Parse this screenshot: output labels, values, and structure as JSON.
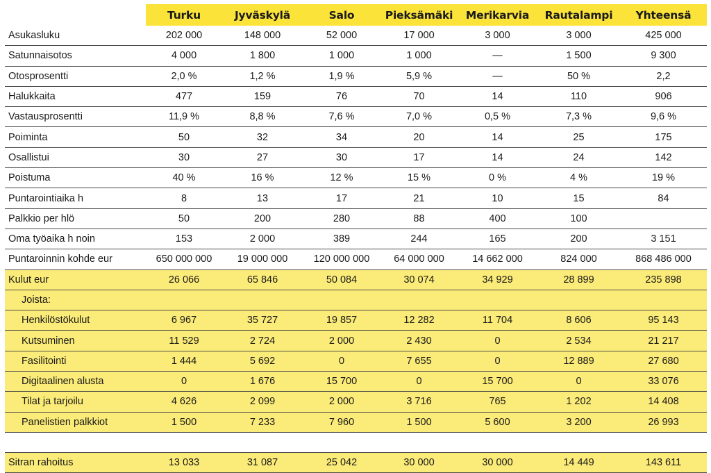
{
  "columns": [
    "",
    "Turku",
    "Jyväskylä",
    "Salo",
    "Pieksämäki",
    "Merikarvia",
    "Rautalampi",
    "Yhteensä"
  ],
  "rows": [
    {
      "label": "Asukasluku",
      "values": [
        "202 000",
        "148 000",
        "52 000",
        "17 000",
        "3 000",
        "3 000",
        "425 000"
      ]
    },
    {
      "label": "Satunnaisotos",
      "values": [
        "4 000",
        "1 800",
        "1 000",
        "1 000",
        "—",
        "1 500",
        "9 300"
      ]
    },
    {
      "label": "Otosprosentti",
      "values": [
        "2,0 %",
        "1,2 %",
        "1,9 %",
        "5,9 %",
        "—",
        "50 %",
        "2,2"
      ]
    },
    {
      "label": "Halukkaita",
      "values": [
        "477",
        "159",
        "76",
        "70",
        "14",
        "110",
        "906"
      ]
    },
    {
      "label": "Vastausprosentti",
      "values": [
        "11,9 %",
        "8,8 %",
        "7,6 %",
        "7,0 %",
        "0,5 %",
        "7,3 %",
        "9,6 %"
      ]
    },
    {
      "label": "Poiminta",
      "values": [
        "50",
        "32",
        "34",
        "20",
        "14",
        "25",
        "175"
      ]
    },
    {
      "label": "Osallistui",
      "values": [
        "30",
        "27",
        "30",
        "17",
        "14",
        "24",
        "142"
      ]
    },
    {
      "label": "Poistuma",
      "values": [
        "40 %",
        "16 %",
        "12 %",
        "15 %",
        "0 %",
        "4 %",
        "19 %"
      ]
    },
    {
      "label": "Puntarointiaika h",
      "values": [
        "8",
        "13",
        "17",
        "21",
        "10",
        "15",
        "84"
      ]
    },
    {
      "label": "Palkkio per hlö",
      "values": [
        "50",
        "200",
        "280",
        "88",
        "400",
        "100",
        ""
      ]
    },
    {
      "label": "Oma työaika h noin",
      "values": [
        "153",
        "2 000",
        "389",
        "244",
        "165",
        "200",
        "3 151"
      ]
    },
    {
      "label": "Puntaroinnin kohde eur",
      "values": [
        "650 000 000",
        "19 000 000",
        "120 000 000",
        "64 000 000",
        "14 662 000",
        "824 000",
        "868 486 000"
      ]
    }
  ],
  "costs": {
    "label": "Kulut eur",
    "values": [
      "26 066",
      "65 846",
      "50 084",
      "30 074",
      "34 929",
      "28 899",
      "235 898"
    ],
    "subheader": "Joista:",
    "items": [
      {
        "label": "Henkilöstökulut",
        "values": [
          "6 967",
          "35 727",
          "19 857",
          "12 282",
          "11 704",
          "8 606",
          "95 143"
        ]
      },
      {
        "label": "Kutsuminen",
        "values": [
          "11 529",
          "2 724",
          "2 000",
          "2 430",
          "0",
          "2 534",
          "21 217"
        ]
      },
      {
        "label": "Fasilitointi",
        "values": [
          "1 444",
          "5 692",
          "0",
          "7 655",
          "0",
          "12 889",
          "27 680"
        ]
      },
      {
        "label": "Digitaalinen alusta",
        "values": [
          "0",
          "1 676",
          "15 700",
          "0",
          "15 700",
          "0",
          "33 076"
        ]
      },
      {
        "label": "Tilat ja tarjoilu",
        "values": [
          "4 626",
          "2 099",
          "2 000",
          "3 716",
          "765",
          "1 202",
          "14 408"
        ]
      },
      {
        "label": "Panelistien palkkiot",
        "values": [
          "1 500",
          "7 233",
          "7 960",
          "1 500",
          "5 600",
          "3 200",
          "26 993"
        ]
      }
    ]
  },
  "funding": {
    "label": "Sitran rahoitus",
    "values": [
      "13 033",
      "31 087",
      "25 042",
      "30 000",
      "30 000",
      "14 449",
      "143 611"
    ]
  },
  "colors": {
    "header_yellow": "#fbe33a",
    "row_yellow": "#fbeb78",
    "rule": "#4a4a4a"
  }
}
